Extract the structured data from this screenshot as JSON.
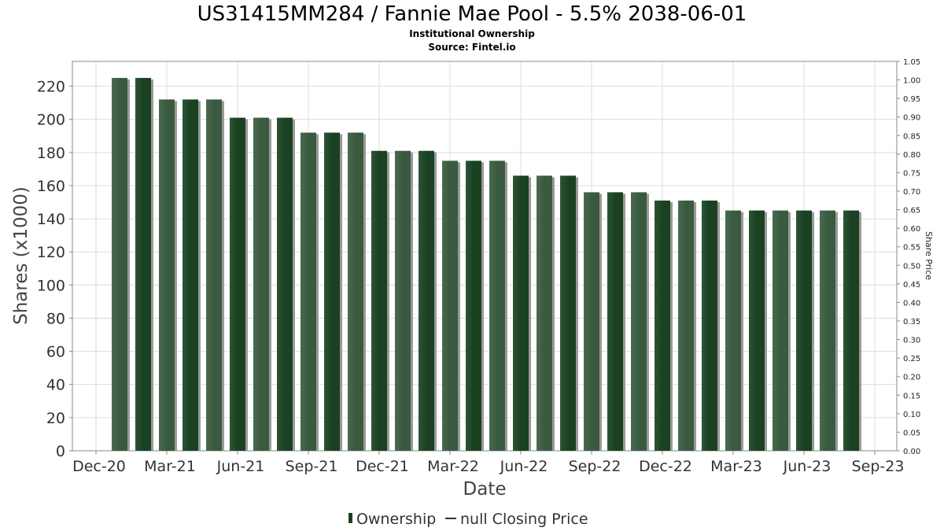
{
  "colors": {
    "bar_dark": "#1a4122",
    "bar_light": "#3a5a40",
    "bar_shadow": "#9a9a9a",
    "grid": "#dcdcdc",
    "axis": "#888888"
  },
  "chart_data": {
    "type": "bar",
    "title": "US31415MM284 / Fannie Mae Pool - 5.5% 2038-06-01",
    "subtitle": "Institutional Ownership",
    "source": "Source: Fintel.io",
    "xlabel": "Date",
    "ylabel": "Shares (x1000)",
    "ylabel_right": "Share Price",
    "ylim": [
      0,
      235
    ],
    "ylim_right": [
      0,
      1.05
    ],
    "yticks": [
      "0",
      "20",
      "40",
      "60",
      "80",
      "100",
      "120",
      "140",
      "160",
      "180",
      "200",
      "220"
    ],
    "yticks_right": [
      "0.00",
      "0.05",
      "0.10",
      "0.15",
      "0.20",
      "0.25",
      "0.30",
      "0.35",
      "0.40",
      "0.45",
      "0.50",
      "0.55",
      "0.60",
      "0.65",
      "0.70",
      "0.75",
      "0.80",
      "0.85",
      "0.90",
      "0.95",
      "1.00",
      "1.05"
    ],
    "xticks": [
      "Dec-20",
      "Mar-21",
      "Jun-21",
      "Sep-21",
      "Dec-21",
      "Mar-22",
      "Jun-22",
      "Sep-22",
      "Dec-22",
      "Mar-23",
      "Jun-23",
      "Sep-23"
    ],
    "xtick_index": [
      0,
      3,
      6,
      9,
      12,
      15,
      18,
      21,
      24,
      27,
      30,
      33
    ],
    "bar_start_index": 1,
    "values": [
      225,
      225,
      212,
      212,
      212,
      201,
      201,
      201,
      192,
      192,
      192,
      181,
      181,
      181,
      175,
      175,
      175,
      166,
      166,
      166,
      156,
      156,
      156,
      151,
      151,
      151,
      145,
      145,
      145,
      145,
      145,
      145
    ],
    "legend": [
      {
        "label": "Ownership",
        "kind": "bar"
      },
      {
        "label": "null Closing Price",
        "kind": "line"
      }
    ],
    "grid": true,
    "legend_position": "bottom"
  }
}
